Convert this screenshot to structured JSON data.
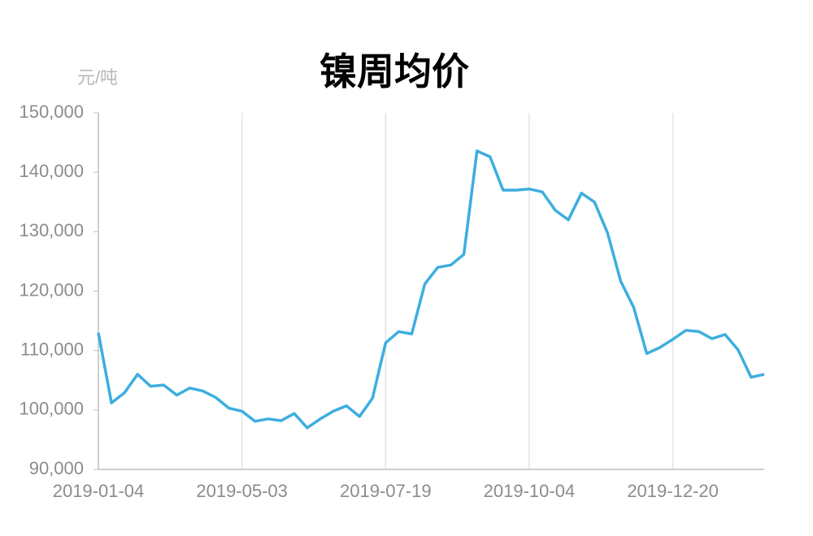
{
  "chart_data": {
    "type": "line",
    "title": "镍周均价",
    "y_label": "元/吨",
    "categories": [
      "2019-01-04",
      null,
      null,
      null,
      null,
      null,
      null,
      null,
      null,
      null,
      null,
      "2019-05-03",
      null,
      null,
      null,
      null,
      null,
      null,
      null,
      null,
      null,
      null,
      "2019-07-19",
      null,
      null,
      null,
      null,
      null,
      null,
      null,
      null,
      null,
      null,
      "2019-10-04",
      null,
      null,
      null,
      null,
      null,
      null,
      null,
      null,
      null,
      null,
      "2019-12-20",
      null,
      null,
      null,
      null,
      null,
      null,
      null
    ],
    "series": [
      {
        "color": "#3daee0",
        "values": [
          113000,
          101200,
          102900,
          106000,
          104000,
          104200,
          102500,
          103700,
          103200,
          102100,
          100300,
          99800,
          98100,
          98500,
          98200,
          99400,
          97000,
          98500,
          99800,
          100700,
          98900,
          102000,
          111300,
          113200,
          112800,
          121200,
          124000,
          124400,
          126200,
          143600,
          142600,
          137000,
          137000,
          137200,
          136700,
          133600,
          132000,
          136500,
          135000,
          129800,
          121700,
          117300,
          109500,
          110500,
          111900,
          113400,
          113200,
          112000,
          112700,
          110100,
          105500,
          106000
        ]
      }
    ],
    "ylim": [
      90000,
      150000
    ],
    "yticks": [
      {
        "value": 90000,
        "label": "90,000"
      },
      {
        "value": 100000,
        "label": "100,000"
      },
      {
        "value": 110000,
        "label": "110,000"
      },
      {
        "value": 120000,
        "label": "120,000"
      },
      {
        "value": 130000,
        "label": "130,000"
      },
      {
        "value": 140000,
        "label": "140,000"
      },
      {
        "value": 150000,
        "label": "150,000"
      }
    ],
    "grid": true
  }
}
